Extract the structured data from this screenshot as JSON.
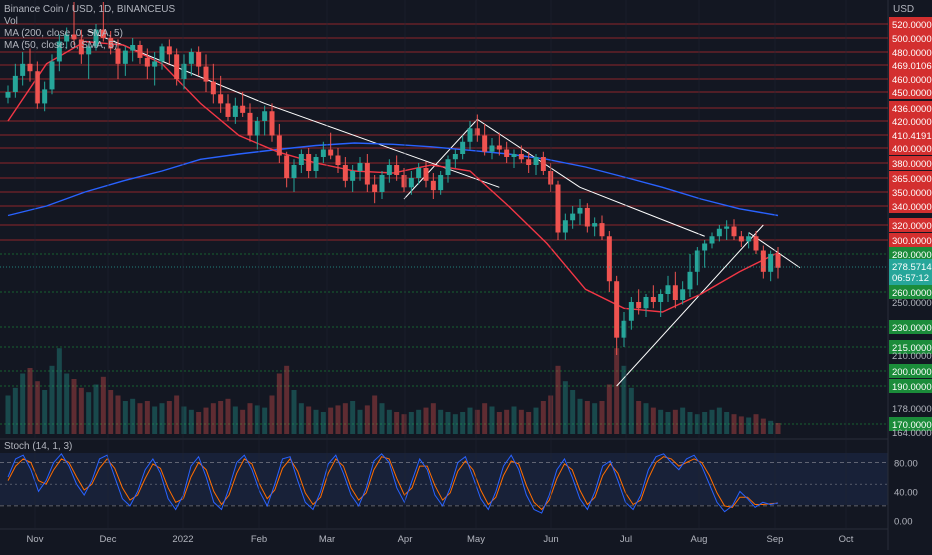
{
  "legend": {
    "symbol_line": "Binance Coin / USD, 1D, BINANCEUS",
    "vol_label": "Vol",
    "ma200_label": "MA (200, close, 0, SMA, 5)",
    "ma50_label": "MA (50, close, 0, SMA, 5)"
  },
  "stoch_legend": "Stoch (14, 1, 3)",
  "currency": "USD",
  "colors": {
    "background": "#131722",
    "up": "#26a69a",
    "down": "#ef5350",
    "ma200": "#2962ff",
    "ma50": "#f23645",
    "red_level": "#d32f2f",
    "green_level": "#1b8c3a",
    "stoch_k": "#2962ff",
    "stoch_d": "#ff6d00",
    "axis_text": "#b2b5be",
    "trendline": "#ffffff"
  },
  "chart_data": [
    {
      "type": "candlestick",
      "title": "Binance Coin / USD, 1D, BINANCEUS",
      "y_axis_ticks": [
        520,
        500,
        480,
        469.0106,
        460,
        450,
        436,
        420,
        410.4191,
        400,
        380,
        365,
        350,
        340,
        320,
        300,
        280,
        260,
        250,
        230,
        215,
        210,
        200,
        190,
        178,
        170,
        164
      ],
      "x_axis_ticks": [
        "Nov",
        "Dec",
        "2022",
        "Feb",
        "Mar",
        "Apr",
        "May",
        "Jun",
        "Jul",
        "Aug",
        "Sep",
        "Oct"
      ],
      "ylim": [
        160,
        525
      ],
      "grid": true,
      "price_levels": [
        {
          "value": 520,
          "label": "520.0000",
          "color": "red"
        },
        {
          "value": 500,
          "label": "500.0000",
          "color": "red"
        },
        {
          "value": 480,
          "label": "480.0000",
          "color": "red"
        },
        {
          "value": 469.0106,
          "label": "469.0106",
          "color": "red"
        },
        {
          "value": 460,
          "label": "460.0000",
          "color": "red"
        },
        {
          "value": 450,
          "label": "450.0000",
          "color": "red"
        },
        {
          "value": 436,
          "label": "436.0000",
          "color": "red"
        },
        {
          "value": 420,
          "label": "420.0000",
          "color": "red"
        },
        {
          "value": 410.4191,
          "label": "410.4191",
          "color": "red"
        },
        {
          "value": 400,
          "label": "400.0000",
          "color": "red"
        },
        {
          "value": 380,
          "label": "380.0000",
          "color": "red"
        },
        {
          "value": 365,
          "label": "365.0000",
          "color": "red"
        },
        {
          "value": 350,
          "label": "350.0000",
          "color": "red"
        },
        {
          "value": 340,
          "label": "340.0000",
          "color": "red"
        },
        {
          "value": 320,
          "label": "320.0000",
          "color": "red"
        },
        {
          "value": 300,
          "label": "300.0000",
          "color": "red"
        },
        {
          "value": 280,
          "label": "280.0000",
          "color": "green"
        },
        {
          "value": 260,
          "label": "260.0000",
          "color": "green"
        },
        {
          "value": 230,
          "label": "230.0000",
          "color": "green"
        },
        {
          "value": 215,
          "label": "215.0000",
          "color": "green"
        },
        {
          "value": 200,
          "label": "200.0000",
          "color": "green"
        },
        {
          "value": 190,
          "label": "190.0000",
          "color": "green"
        },
        {
          "value": 170,
          "label": "170.0000",
          "color": "green"
        }
      ],
      "plain_ticks": [
        {
          "value": 250,
          "label": "250.0000"
        },
        {
          "value": 210,
          "label": "210.0000"
        },
        {
          "value": 178,
          "label": "178.0000"
        },
        {
          "value": 164,
          "label": "164.0000"
        }
      ],
      "current_price": {
        "value": 278.5714,
        "label": "278.5714",
        "countdown": "06:57:12"
      },
      "candles": [
        [
          445,
          455,
          440,
          450
        ],
        [
          450,
          470,
          445,
          462
        ],
        [
          462,
          480,
          455,
          470
        ],
        [
          470,
          485,
          458,
          465
        ],
        [
          465,
          472,
          435,
          440
        ],
        [
          440,
          458,
          432,
          452
        ],
        [
          452,
          478,
          448,
          472
        ],
        [
          472,
          505,
          465,
          495
        ],
        [
          495,
          515,
          485,
          505
        ],
        [
          505,
          525,
          490,
          498
        ],
        [
          498,
          512,
          470,
          478
        ],
        [
          478,
          492,
          460,
          488
        ],
        [
          488,
          520,
          482,
          512
        ],
        [
          512,
          525,
          495,
          500
        ],
        [
          500,
          510,
          478,
          485
        ],
        [
          485,
          498,
          460,
          470
        ],
        [
          470,
          488,
          462,
          482
        ],
        [
          482,
          500,
          472,
          490
        ],
        [
          490,
          496,
          470,
          475
        ],
        [
          475,
          485,
          460,
          468
        ],
        [
          468,
          480,
          455,
          472
        ],
        [
          472,
          492,
          466,
          488
        ],
        [
          488,
          498,
          470,
          478
        ],
        [
          478,
          485,
          455,
          460
        ],
        [
          460,
          478,
          452,
          470
        ],
        [
          470,
          485,
          462,
          480
        ],
        [
          480,
          488,
          462,
          468
        ],
        [
          468,
          478,
          450,
          458
        ],
        [
          458,
          470,
          440,
          448
        ],
        [
          448,
          462,
          430,
          440
        ],
        [
          440,
          448,
          420,
          425
        ],
        [
          425,
          445,
          418,
          438
        ],
        [
          438,
          450,
          425,
          430
        ],
        [
          430,
          440,
          405,
          410
        ],
        [
          410,
          425,
          398,
          420
        ],
        [
          420,
          438,
          410,
          432
        ],
        [
          432,
          440,
          405,
          410
        ],
        [
          410,
          418,
          380,
          390
        ],
        [
          390,
          395,
          355,
          365
        ],
        [
          365,
          385,
          350,
          378
        ],
        [
          378,
          398,
          370,
          392
        ],
        [
          392,
          400,
          365,
          372
        ],
        [
          372,
          392,
          365,
          388
        ],
        [
          388,
          405,
          380,
          398
        ],
        [
          398,
          412,
          385,
          390
        ],
        [
          390,
          400,
          370,
          378
        ],
        [
          378,
          388,
          355,
          362
        ],
        [
          362,
          378,
          350,
          372
        ],
        [
          372,
          388,
          362,
          380
        ],
        [
          380,
          392,
          350,
          358
        ],
        [
          358,
          368,
          342,
          350
        ],
        [
          350,
          372,
          345,
          368
        ],
        [
          368,
          385,
          360,
          378
        ],
        [
          378,
          390,
          362,
          368
        ],
        [
          368,
          375,
          350,
          355
        ],
        [
          355,
          372,
          348,
          365
        ],
        [
          365,
          380,
          358,
          375
        ],
        [
          375,
          382,
          355,
          362
        ],
        [
          362,
          370,
          345,
          352
        ],
        [
          352,
          372,
          348,
          368
        ],
        [
          368,
          390,
          360,
          385
        ],
        [
          385,
          398,
          375,
          392
        ],
        [
          392,
          410,
          385,
          405
        ],
        [
          405,
          420,
          398,
          415
        ],
        [
          415,
          428,
          405,
          410
        ],
        [
          410,
          418,
          390,
          395
        ],
        [
          395,
          408,
          385,
          402
        ],
        [
          402,
          412,
          390,
          398
        ],
        [
          398,
          405,
          380,
          388
        ],
        [
          388,
          398,
          375,
          392
        ],
        [
          392,
          402,
          380,
          385
        ],
        [
          385,
          395,
          370,
          378
        ],
        [
          378,
          392,
          368,
          388
        ],
        [
          388,
          395,
          368,
          372
        ],
        [
          372,
          380,
          350,
          358
        ],
        [
          358,
          362,
          300,
          310
        ],
        [
          310,
          332,
          300,
          325
        ],
        [
          325,
          340,
          315,
          332
        ],
        [
          332,
          345,
          320,
          338
        ],
        [
          338,
          342,
          310,
          318
        ],
        [
          318,
          328,
          305,
          322
        ],
        [
          322,
          330,
          300,
          305
        ],
        [
          305,
          312,
          260,
          268
        ],
        [
          268,
          272,
          210,
          222
        ],
        [
          222,
          242,
          215,
          235
        ],
        [
          235,
          255,
          228,
          250
        ],
        [
          250,
          262,
          240,
          245
        ],
        [
          245,
          258,
          238,
          255
        ],
        [
          255,
          265,
          245,
          250
        ],
        [
          250,
          262,
          238,
          258
        ],
        [
          258,
          272,
          250,
          265
        ],
        [
          265,
          275,
          245,
          252
        ],
        [
          252,
          268,
          248,
          262
        ],
        [
          262,
          280,
          255,
          275
        ],
        [
          275,
          290,
          265,
          285
        ],
        [
          285,
          300,
          278,
          295
        ],
        [
          295,
          310,
          288,
          305
        ],
        [
          305,
          320,
          298,
          315
        ],
        [
          315,
          325,
          300,
          318
        ],
        [
          318,
          326,
          300,
          305
        ],
        [
          305,
          312,
          290,
          298
        ],
        [
          298,
          310,
          288,
          305
        ],
        [
          305,
          312,
          280,
          285
        ],
        [
          285,
          292,
          270,
          275
        ],
        [
          275,
          285,
          268,
          280
        ],
        [
          280,
          290,
          270,
          278
        ]
      ],
      "ma200": [
        330,
        340,
        350,
        362,
        372,
        385,
        392,
        398,
        402,
        404,
        403,
        401,
        397,
        392,
        385,
        376,
        366,
        355,
        345,
        337,
        330
      ],
      "ma50": [
        420,
        470,
        495,
        490,
        470,
        440,
        410,
        395,
        380,
        372,
        370,
        378,
        372,
        340,
        295,
        262,
        245,
        242,
        258,
        275,
        282
      ],
      "trendlines": [
        {
          "from": [
            11,
            510
          ],
          "to": [
            35,
            440
          ]
        },
        {
          "from": [
            35,
            440
          ],
          "to": [
            67,
            355
          ]
        },
        {
          "from": [
            54,
            345
          ],
          "to": [
            64,
            422
          ]
        },
        {
          "from": [
            64,
            422
          ],
          "to": [
            78,
            355
          ]
        },
        {
          "from": [
            78,
            355
          ],
          "to": [
            95,
            305
          ]
        },
        {
          "from": [
            83,
            190
          ],
          "to": [
            103,
            320
          ]
        },
        {
          "from": [
            101,
            310
          ],
          "to": [
            108,
            278
          ]
        }
      ],
      "volume": [
        0.35,
        0.42,
        0.55,
        0.6,
        0.48,
        0.4,
        0.62,
        0.78,
        0.55,
        0.5,
        0.42,
        0.38,
        0.45,
        0.52,
        0.4,
        0.35,
        0.3,
        0.32,
        0.28,
        0.3,
        0.25,
        0.28,
        0.3,
        0.35,
        0.25,
        0.22,
        0.2,
        0.24,
        0.28,
        0.3,
        0.32,
        0.25,
        0.22,
        0.28,
        0.26,
        0.24,
        0.35,
        0.55,
        0.62,
        0.4,
        0.28,
        0.25,
        0.22,
        0.2,
        0.24,
        0.26,
        0.28,
        0.3,
        0.22,
        0.26,
        0.35,
        0.28,
        0.22,
        0.2,
        0.18,
        0.2,
        0.22,
        0.24,
        0.28,
        0.22,
        0.2,
        0.18,
        0.2,
        0.24,
        0.22,
        0.28,
        0.25,
        0.2,
        0.22,
        0.25,
        0.22,
        0.2,
        0.24,
        0.3,
        0.35,
        0.62,
        0.48,
        0.4,
        0.32,
        0.3,
        0.28,
        0.3,
        0.45,
        0.78,
        0.62,
        0.42,
        0.3,
        0.28,
        0.24,
        0.22,
        0.2,
        0.22,
        0.24,
        0.2,
        0.18,
        0.2,
        0.22,
        0.24,
        0.2,
        0.18,
        0.16,
        0.15,
        0.18,
        0.14,
        0.12,
        0.1
      ]
    },
    {
      "type": "line",
      "title": "Stoch (14, 1, 3)",
      "y_axis_ticks": [
        80,
        40,
        0
      ],
      "y_tick_labels": [
        "80.00",
        "40.00",
        "0.00"
      ],
      "dashed_levels": [
        80,
        20
      ],
      "ylim": [
        -5,
        105
      ],
      "series": [
        {
          "name": "K",
          "values": [
            60,
            85,
            90,
            70,
            40,
            55,
            80,
            92,
            75,
            50,
            35,
            55,
            85,
            90,
            60,
            30,
            20,
            40,
            70,
            85,
            65,
            30,
            15,
            35,
            75,
            88,
            60,
            25,
            15,
            45,
            80,
            90,
            70,
            40,
            20,
            50,
            85,
            88,
            55,
            25,
            15,
            40,
            78,
            90,
            65,
            35,
            20,
            45,
            82,
            92,
            80,
            45,
            25,
            55,
            85,
            70,
            35,
            20,
            45,
            80,
            88,
            60,
            30,
            15,
            40,
            75,
            90,
            70,
            35,
            15,
            10,
            35,
            70,
            85,
            60,
            30,
            15,
            40,
            75,
            82,
            55,
            25,
            15,
            35,
            70,
            88,
            92,
            80,
            70,
            85,
            90,
            75,
            50,
            25,
            12,
            20,
            40,
            30,
            18,
            25,
            22,
            24
          ]
        },
        {
          "name": "D",
          "values": [
            55,
            75,
            85,
            80,
            55,
            50,
            70,
            85,
            80,
            60,
            42,
            50,
            72,
            85,
            72,
            45,
            28,
            35,
            58,
            78,
            72,
            45,
            25,
            30,
            60,
            80,
            70,
            40,
            22,
            35,
            65,
            85,
            78,
            50,
            30,
            42,
            72,
            85,
            68,
            38,
            22,
            32,
            65,
            85,
            75,
            45,
            28,
            38,
            70,
            88,
            85,
            58,
            35,
            45,
            75,
            75,
            48,
            28,
            38,
            68,
            82,
            70,
            42,
            22,
            32,
            62,
            82,
            78,
            48,
            25,
            15,
            28,
            58,
            78,
            70,
            42,
            22,
            32,
            62,
            78,
            65,
            38,
            22,
            28,
            58,
            80,
            88,
            85,
            75,
            80,
            85,
            80,
            62,
            38,
            20,
            18,
            32,
            32,
            22,
            22,
            23,
            24
          ]
        }
      ]
    }
  ],
  "x_labels": [
    "Nov",
    "Dec",
    "2022",
    "Feb",
    "Mar",
    "Apr",
    "May",
    "Jun",
    "Jul",
    "Aug",
    "Sep",
    "Oct"
  ]
}
